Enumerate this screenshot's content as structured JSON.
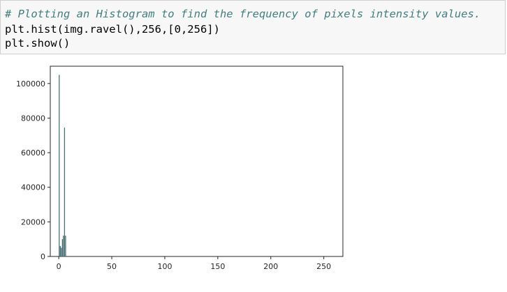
{
  "code_cell": {
    "lines": [
      "# Plotting an Histogram to find the frequency of pixels intensity values.",
      "plt.hist(img.ravel(),256,[0,256])",
      "plt.show()"
    ],
    "comment_color": "#408080"
  },
  "chart_data": {
    "type": "bar",
    "title": "",
    "xlabel": "",
    "ylabel": "",
    "xlim": [
      -8,
      268
    ],
    "ylim": [
      0,
      110000
    ],
    "grid": false,
    "bar_color": "#4c7277",
    "xticks": [
      0,
      50,
      100,
      150,
      200,
      250
    ],
    "yticks": [
      0,
      20000,
      40000,
      60000,
      80000,
      100000
    ],
    "bin_width": 1,
    "bins": [
      {
        "x": 0,
        "value": 105000
      },
      {
        "x": 1,
        "value": 6000
      },
      {
        "x": 2,
        "value": 5000
      },
      {
        "x": 3,
        "value": 10000
      },
      {
        "x": 4,
        "value": 12000
      },
      {
        "x": 5,
        "value": 74500
      },
      {
        "x": 6,
        "value": 12000
      }
    ]
  }
}
